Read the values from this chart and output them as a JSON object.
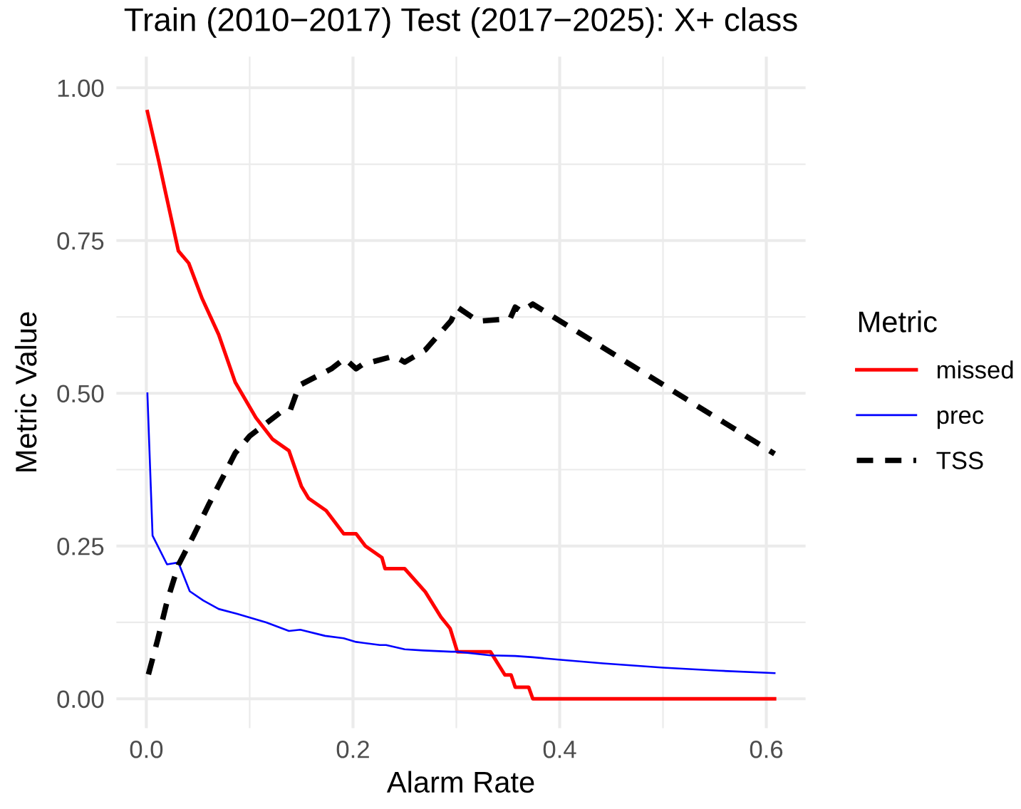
{
  "chart_data": {
    "type": "line",
    "title": "Train (2010−2017) Test (2017−2025): X+ class",
    "xlabel": "Alarm Rate",
    "ylabel": "Metric Value",
    "legend_title": "Metric",
    "legend": "right",
    "grid": true,
    "xlim": [
      -0.029,
      0.638
    ],
    "ylim": [
      -0.048,
      1.051
    ],
    "xticks": [
      {
        "value": 0.0,
        "label": "0.0"
      },
      {
        "value": 0.1,
        "label": null
      },
      {
        "value": 0.2,
        "label": "0.2"
      },
      {
        "value": 0.3,
        "label": null
      },
      {
        "value": 0.4,
        "label": "0.4"
      },
      {
        "value": 0.5,
        "label": null
      },
      {
        "value": 0.6,
        "label": "0.6"
      }
    ],
    "yticks": [
      {
        "value": 0.0,
        "label": "0.00"
      },
      {
        "value": 0.125,
        "label": null
      },
      {
        "value": 0.25,
        "label": "0.25"
      },
      {
        "value": 0.375,
        "label": null
      },
      {
        "value": 0.5,
        "label": "0.50"
      },
      {
        "value": 0.625,
        "label": null
      },
      {
        "value": 0.75,
        "label": "0.75"
      },
      {
        "value": 0.875,
        "label": null
      },
      {
        "value": 1.0,
        "label": "1.00"
      }
    ],
    "series": [
      {
        "name": "missed",
        "color": "#ff0000",
        "line_style": "solid",
        "x": [
          0.001,
          0.012,
          0.018,
          0.031,
          0.041,
          0.054,
          0.07,
          0.086,
          0.106,
          0.122,
          0.138,
          0.15,
          0.157,
          0.174,
          0.191,
          0.203,
          0.212,
          0.228,
          0.231,
          0.25,
          0.27,
          0.285,
          0.294,
          0.301,
          0.333,
          0.347,
          0.353,
          0.357,
          0.37,
          0.374,
          0.608
        ],
        "values": [
          0.961,
          0.88,
          0.833,
          0.733,
          0.713,
          0.655,
          0.596,
          0.518,
          0.46,
          0.425,
          0.406,
          0.348,
          0.328,
          0.308,
          0.27,
          0.27,
          0.25,
          0.231,
          0.213,
          0.213,
          0.175,
          0.134,
          0.115,
          0.077,
          0.077,
          0.039,
          0.039,
          0.019,
          0.019,
          0.0,
          0.0
        ]
      },
      {
        "name": "prec",
        "color": "#0000ff",
        "line_style": "solid",
        "x": [
          0.001,
          0.006,
          0.02,
          0.031,
          0.042,
          0.055,
          0.07,
          0.088,
          0.116,
          0.138,
          0.149,
          0.173,
          0.191,
          0.203,
          0.226,
          0.232,
          0.25,
          0.268,
          0.295,
          0.301,
          0.333,
          0.357,
          0.374,
          0.399,
          0.442,
          0.5,
          0.554,
          0.608
        ],
        "values": [
          0.5,
          0.267,
          0.22,
          0.223,
          0.176,
          0.161,
          0.147,
          0.139,
          0.125,
          0.111,
          0.113,
          0.103,
          0.099,
          0.093,
          0.088,
          0.088,
          0.081,
          0.079,
          0.077,
          0.077,
          0.071,
          0.07,
          0.068,
          0.064,
          0.058,
          0.051,
          0.046,
          0.042
        ]
      },
      {
        "name": "TSS",
        "color": "#000000",
        "line_style": "dashed",
        "x": [
          0.002,
          0.011,
          0.02,
          0.031,
          0.046,
          0.061,
          0.079,
          0.086,
          0.1,
          0.13,
          0.139,
          0.148,
          0.179,
          0.192,
          0.203,
          0.209,
          0.24,
          0.25,
          0.27,
          0.295,
          0.301,
          0.321,
          0.352,
          0.357,
          0.363,
          0.374,
          0.608
        ],
        "values": [
          0.04,
          0.097,
          0.159,
          0.219,
          0.268,
          0.32,
          0.379,
          0.402,
          0.43,
          0.469,
          0.471,
          0.513,
          0.54,
          0.557,
          0.54,
          0.547,
          0.561,
          0.551,
          0.571,
          0.619,
          0.641,
          0.618,
          0.622,
          0.641,
          0.634,
          0.646,
          0.401
        ]
      }
    ]
  }
}
